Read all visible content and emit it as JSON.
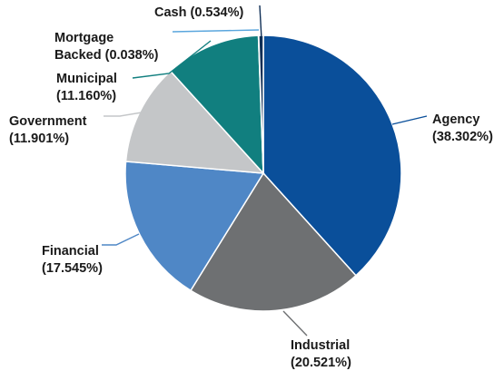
{
  "chart_data": {
    "type": "pie",
    "title": "",
    "slices": [
      {
        "label_lines": [
          "Agency",
          "(38.302%)"
        ],
        "value": 38.302,
        "color": "#0a4f9a"
      },
      {
        "label_lines": [
          "Industrial",
          "(20.521%)"
        ],
        "value": 20.521,
        "color": "#6e7072"
      },
      {
        "label_lines": [
          "Financial",
          "(17.545%)"
        ],
        "value": 17.545,
        "color": "#4f87c6"
      },
      {
        "label_lines": [
          "Government",
          "(11.901%)"
        ],
        "value": 11.901,
        "color": "#c4c6c8"
      },
      {
        "label_lines": [
          "Municipal",
          "(11.160%)"
        ],
        "value": 11.16,
        "color": "#117f7f"
      },
      {
        "label_lines": [
          "Mortgage",
          "Backed (0.038%)"
        ],
        "value": 0.038,
        "color": "#5aa6dd"
      },
      {
        "label_lines": [
          "Cash (0.534%)"
        ],
        "value": 0.534,
        "color": "#0e2e55"
      }
    ]
  }
}
